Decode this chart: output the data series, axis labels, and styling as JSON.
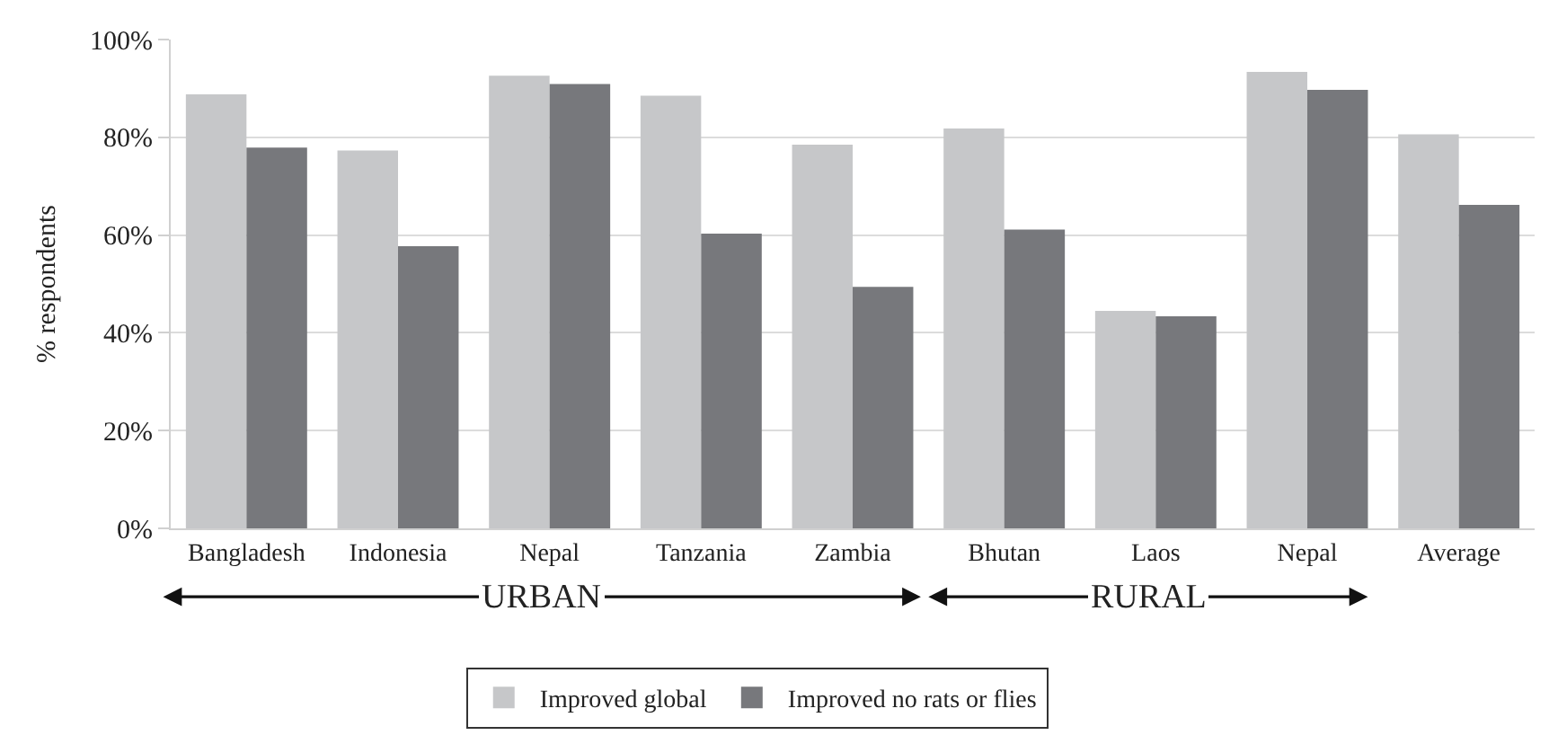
{
  "chart_data": {
    "type": "bar",
    "ylabel": "% respondents",
    "categories": [
      "Bangladesh",
      "Indonesia",
      "Nepal",
      "Tanzania",
      "Zambia",
      "Bhutan",
      "Laos",
      "Nepal",
      "Average"
    ],
    "series": [
      {
        "name": "Improved global",
        "color": "#c6c7c9",
        "values": [
          88.8,
          77.3,
          92.6,
          88.5,
          78.5,
          81.8,
          44.5,
          93.4,
          80.6
        ]
      },
      {
        "name": "Improved no rats or flies",
        "color": "#77787c",
        "values": [
          77.9,
          57.7,
          90.9,
          60.3,
          49.4,
          61.1,
          43.4,
          89.7,
          66.2
        ]
      }
    ],
    "ylim": [
      0,
      100
    ],
    "yticks": [
      {
        "value": 0,
        "label": "0%"
      },
      {
        "value": 20,
        "label": "20%"
      },
      {
        "value": 40,
        "label": "40%"
      },
      {
        "value": 60,
        "label": "60%"
      },
      {
        "value": 80,
        "label": "80%"
      },
      {
        "value": 100,
        "label": "100%"
      }
    ],
    "grid": "y",
    "legend": "bottom",
    "annotations": [
      "URBAN",
      "RURAL"
    ]
  }
}
